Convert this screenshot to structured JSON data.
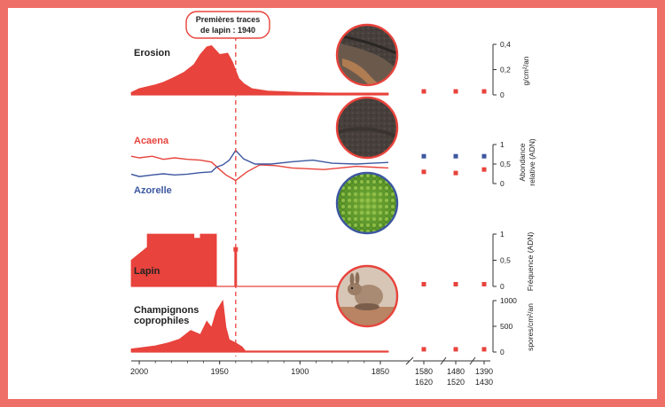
{
  "annotation": {
    "line1": "Premières traces",
    "line2": "de lapin : 1940",
    "year": 1940
  },
  "colors": {
    "red": "#e8433c",
    "blue": "#3d57a0",
    "frame": "#ee6e68",
    "axis": "#333333"
  },
  "x_axis": {
    "ticks": [
      "2000",
      "1950",
      "1900",
      "1850"
    ],
    "extra_ticks": [
      {
        "top": "1580",
        "bottom": "1620"
      },
      {
        "top": "1480",
        "bottom": "1520"
      },
      {
        "top": "1390",
        "bottom": "1430"
      }
    ]
  },
  "photos": [
    {
      "name": "erosion-photo",
      "kind": "soil"
    },
    {
      "name": "acaena-photo",
      "kind": "soil"
    },
    {
      "name": "azorelle-photo",
      "kind": "cushion plant"
    },
    {
      "name": "lapin-photo",
      "kind": "rabbit"
    }
  ],
  "chart_data": [
    {
      "type": "area",
      "title": "Erosion",
      "ylabel": "g/cm²/an",
      "yticks": [
        "0,4",
        "0,2",
        "0"
      ],
      "ylim": [
        0,
        0.4
      ],
      "x": [
        2005,
        2000,
        1990,
        1985,
        1978,
        1972,
        1966,
        1962,
        1958,
        1955,
        1950,
        1945,
        1942,
        1938,
        1935,
        1930,
        1920,
        1900,
        1880,
        1860,
        1845
      ],
      "values": [
        0.02,
        0.05,
        0.08,
        0.1,
        0.14,
        0.18,
        0.24,
        0.32,
        0.38,
        0.39,
        0.32,
        0.33,
        0.26,
        0.13,
        0.09,
        0.05,
        0.03,
        0.02,
        0.015,
        0.015,
        0.015
      ],
      "old_samples": {
        "labels": [
          "1580-1620",
          "1480-1520",
          "1390-1430"
        ],
        "values": [
          0.01,
          0.01,
          0.01
        ]
      }
    },
    {
      "type": "line",
      "ylabel": "Abondance relative (ADN)",
      "yticks": [
        "1",
        "0,5",
        "0"
      ],
      "ylim": [
        0,
        1
      ],
      "series": [
        {
          "name": "Acaena",
          "color": "#e8433c",
          "x": [
            2005,
            2000,
            1992,
            1985,
            1978,
            1970,
            1962,
            1955,
            1950,
            1946,
            1940,
            1933,
            1925,
            1915,
            1905,
            1895,
            1885,
            1875,
            1865,
            1855,
            1845
          ],
          "values": [
            0.7,
            0.66,
            0.7,
            0.62,
            0.66,
            0.62,
            0.6,
            0.55,
            0.36,
            0.22,
            0.08,
            0.3,
            0.48,
            0.46,
            0.4,
            0.38,
            0.36,
            0.4,
            0.44,
            0.42,
            0.4
          ],
          "old_samples": [
            0.3,
            0.27,
            0.36
          ]
        },
        {
          "name": "Azorelle",
          "color": "#3d57a0",
          "x": [
            2005,
            2000,
            1992,
            1985,
            1978,
            1970,
            1962,
            1955,
            1952,
            1948,
            1944,
            1940,
            1935,
            1928,
            1918,
            1905,
            1892,
            1880,
            1865,
            1855,
            1845
          ],
          "values": [
            0.24,
            0.18,
            0.22,
            0.25,
            0.22,
            0.24,
            0.28,
            0.3,
            0.42,
            0.48,
            0.6,
            0.85,
            0.63,
            0.5,
            0.5,
            0.56,
            0.6,
            0.52,
            0.5,
            0.52,
            0.54
          ],
          "old_samples": [
            0.7,
            0.7,
            0.7
          ]
        }
      ]
    },
    {
      "type": "area",
      "title": "Lapin",
      "ylabel": "Fréquence (ADN)",
      "yticks": [
        "1",
        "0,5",
        "0"
      ],
      "ylim": [
        0,
        1
      ],
      "x": [
        2005,
        1995,
        1995,
        1982,
        1970,
        1966,
        1966,
        1962,
        1962,
        1955,
        1952,
        1952,
        1949,
        1949,
        1940.6,
        1940.6,
        1939.4,
        1939.4,
        1845
      ],
      "values": [
        0.5,
        0.75,
        1.0,
        1.0,
        1.0,
        1.0,
        0.92,
        0.92,
        1.0,
        1.0,
        1.0,
        0.0,
        0.0,
        0.0,
        0.0,
        0.7,
        0.7,
        0.0,
        0.0
      ],
      "old_samples": {
        "labels": [
          "1580-1620",
          "1480-1520",
          "1390-1430"
        ],
        "values": [
          0,
          0,
          0
        ]
      }
    },
    {
      "type": "area",
      "title": "Champignons coprophiles",
      "ylabel": "spores/cm²/an",
      "yticks": [
        "1000",
        "500",
        "0"
      ],
      "ylim": [
        0,
        1000
      ],
      "x": [
        2005,
        2000,
        1990,
        1982,
        1975,
        1968,
        1962,
        1958,
        1955,
        1952,
        1948,
        1946,
        1944,
        1940,
        1936,
        1934,
        1845
      ],
      "values": [
        60,
        80,
        120,
        180,
        250,
        420,
        340,
        600,
        480,
        800,
        1000,
        480,
        240,
        180,
        100,
        20,
        20
      ],
      "old_samples": {
        "labels": [
          "1580-1620",
          "1480-1520",
          "1390-1430"
        ],
        "values": [
          10,
          10,
          10
        ]
      }
    }
  ]
}
